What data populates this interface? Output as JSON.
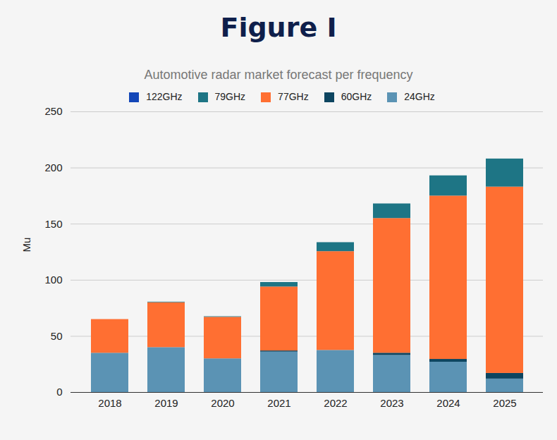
{
  "chart_data": {
    "type": "bar",
    "stacked": true,
    "grid": true,
    "legend": "top",
    "figure_title": "Figure I",
    "title": "Automotive radar market forecast per frequency",
    "ylabel": "Mu",
    "categories": [
      "2018",
      "2019",
      "2020",
      "2021",
      "2022",
      "2023",
      "2024",
      "2025"
    ],
    "ylim": [
      0,
      250
    ],
    "yticks": [
      0,
      50,
      100,
      150,
      200,
      250
    ],
    "series": [
      {
        "name": "122GHz",
        "color": "#1447b8",
        "values": [
          0,
          0,
          0,
          0,
          0,
          0,
          0,
          0
        ]
      },
      {
        "name": "79GHz",
        "color": "#1e7585",
        "values": [
          0,
          0.5,
          0.5,
          4,
          8,
          13,
          18,
          25
        ]
      },
      {
        "name": "77GHz",
        "color": "#ff6f32",
        "values": [
          30,
          40,
          37,
          57,
          88,
          120,
          145.5,
          166
        ]
      },
      {
        "name": "60GHz",
        "color": "#0d4560",
        "values": [
          0,
          0,
          0,
          1,
          0,
          2,
          2.5,
          5
        ]
      },
      {
        "name": "24GHz",
        "color": "#5b93b4",
        "values": [
          35,
          40,
          30,
          36,
          37.5,
          33,
          27,
          12
        ]
      }
    ]
  }
}
